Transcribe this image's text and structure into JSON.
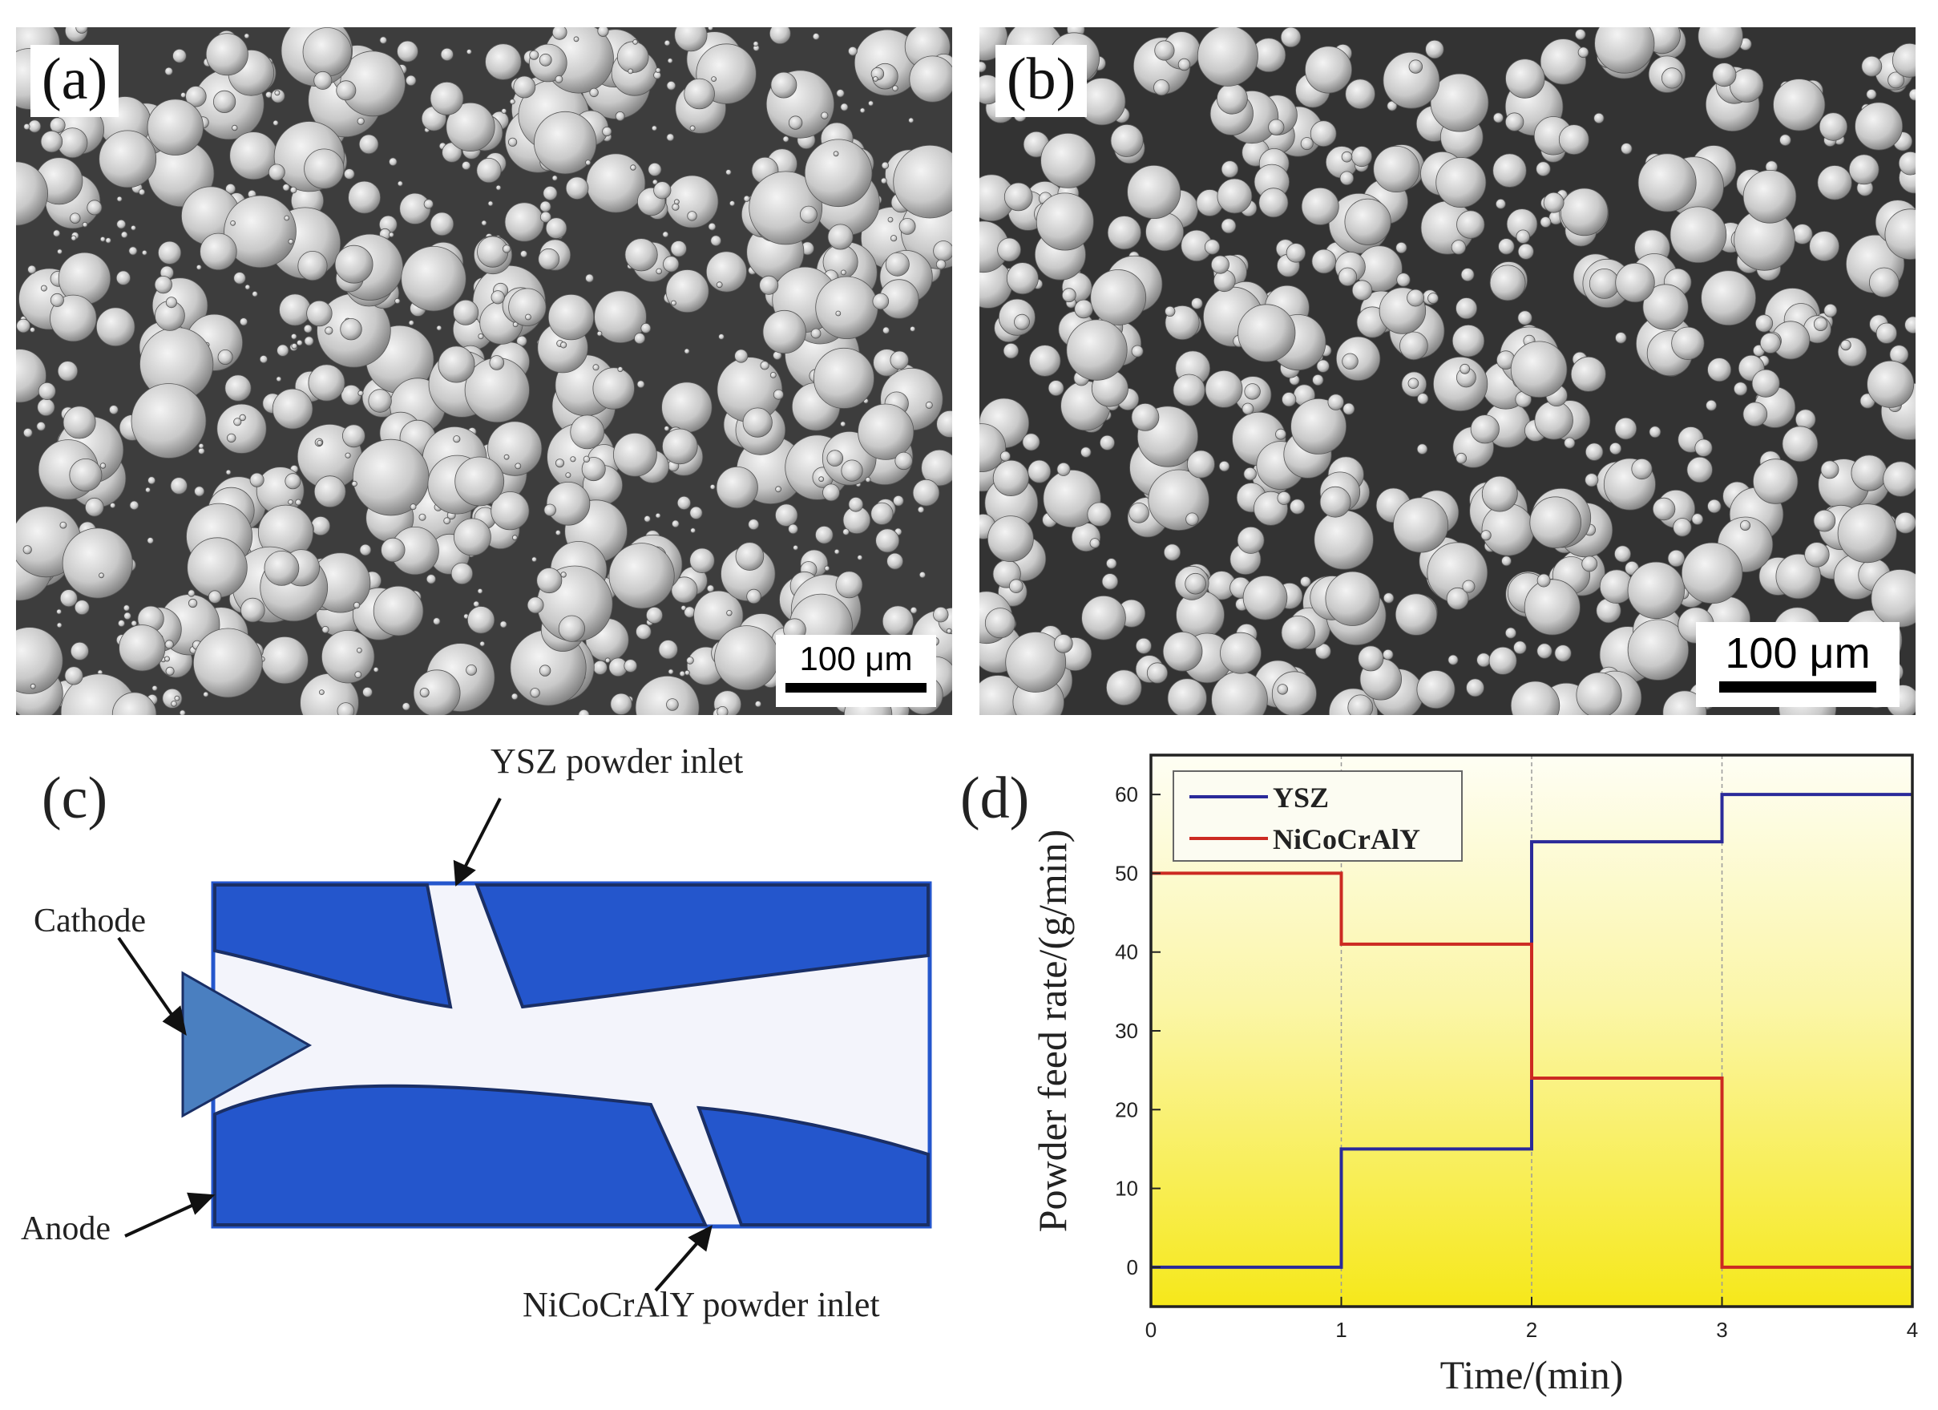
{
  "panels": {
    "a": {
      "label": "(a)",
      "scale_bar": "100 μm"
    },
    "b": {
      "label": "(b)",
      "scale_bar": "100 μm"
    },
    "c": {
      "label": "(c)",
      "annotations": {
        "ysz_inlet": "YSZ powder inlet",
        "cathode": "Cathode",
        "anode": "Anode",
        "nicocraly_inlet": "NiCoCrAlY powder inlet"
      },
      "colors": {
        "electrode": "#2456cc",
        "cathode": "#4a7fc0",
        "channel": "#f3f4fb"
      }
    },
    "d": {
      "label": "(d)"
    }
  },
  "chart_data": {
    "type": "line",
    "step": true,
    "title": "",
    "xlabel": "Time/(min)",
    "ylabel": "Powder feed rate/(g/min)",
    "xlim": [
      0,
      4
    ],
    "ylim": [
      -5,
      65
    ],
    "xticks": [
      0,
      1,
      2,
      3,
      4
    ],
    "yticks": [
      0,
      10,
      20,
      30,
      40,
      50,
      60
    ],
    "grid": "vertical dashed at x = 1, 2, 3",
    "legend": "top-left",
    "background": "gradient yellow (bottom) to pale yellow (top)",
    "series": [
      {
        "name": "YSZ",
        "color": "#2a2a9a",
        "x": [
          0,
          1,
          1,
          2,
          2,
          3,
          3,
          4
        ],
        "y": [
          0,
          0,
          15,
          15,
          54,
          54,
          60,
          60
        ]
      },
      {
        "name": "NiCoCrAlY",
        "color": "#cc2a22",
        "x": [
          0,
          1,
          1,
          2,
          2,
          3,
          3,
          4
        ],
        "y": [
          50,
          50,
          41,
          41,
          24,
          24,
          0,
          0
        ]
      }
    ]
  }
}
